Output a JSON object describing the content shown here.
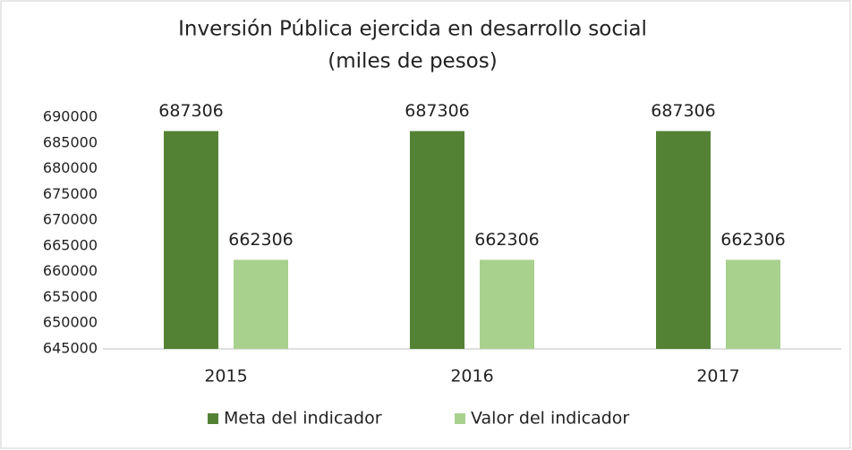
{
  "chart_data": {
    "type": "bar",
    "title": "Inversión Pública ejercida en desarrollo social",
    "subtitle": "(miles de pesos)",
    "categories": [
      "2015",
      "2016",
      "2017"
    ],
    "series": [
      {
        "name": "Meta del indicador",
        "color": "#548235",
        "values": [
          687306,
          687306,
          687306
        ]
      },
      {
        "name": "Valor del indicador",
        "color": "#a9d18e",
        "values": [
          662306,
          662306,
          662306
        ]
      }
    ],
    "ylim": [
      645000,
      690000
    ],
    "yticks": [
      645000,
      650000,
      655000,
      660000,
      665000,
      670000,
      675000,
      680000,
      685000,
      690000
    ],
    "grid": false,
    "legend": "bottom"
  }
}
